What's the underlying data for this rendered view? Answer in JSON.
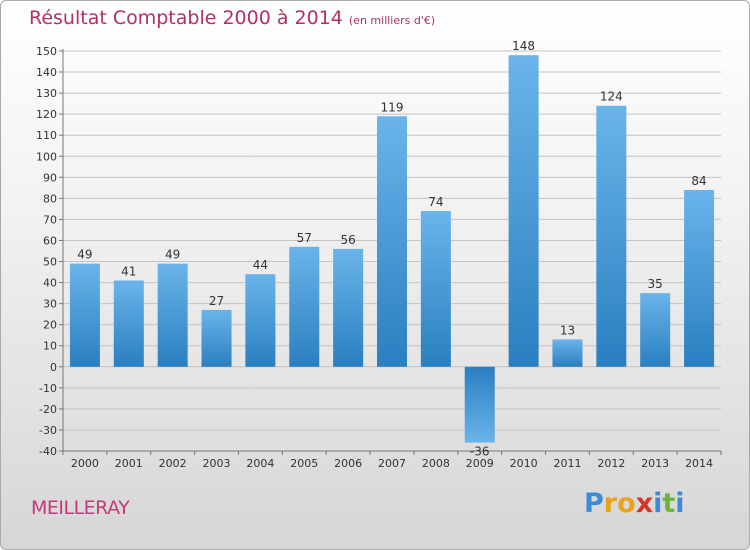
{
  "header": {
    "title": "Résultat Comptable 2000 à 2014",
    "subtitle": "(en milliers d'€)"
  },
  "footer": {
    "town": "MEILLERAY",
    "logo_letters": [
      "P",
      "r",
      "o",
      "x",
      "i",
      "t",
      "i"
    ],
    "logo_colors": [
      "#3d8bd6",
      "#e8a21b",
      "#e8a21b",
      "#d9342b",
      "#3d8bd6",
      "#6cb33f",
      "#3d8bd6"
    ]
  },
  "chart_data": {
    "type": "bar",
    "title": "Résultat Comptable 2000 à 2014",
    "subtitle": "(en milliers d'€)",
    "xlabel": "",
    "ylabel": "",
    "categories": [
      "2000",
      "2001",
      "2002",
      "2003",
      "2004",
      "2005",
      "2006",
      "2007",
      "2008",
      "2009",
      "2010",
      "2011",
      "2012",
      "2013",
      "2014"
    ],
    "values": [
      49,
      41,
      49,
      27,
      44,
      57,
      56,
      119,
      74,
      -36,
      148,
      13,
      124,
      35,
      84
    ],
    "ylim": [
      -40,
      150
    ],
    "yticks": [
      -40,
      -30,
      -20,
      -10,
      0,
      10,
      20,
      30,
      40,
      50,
      60,
      70,
      80,
      90,
      100,
      110,
      120,
      130,
      140,
      150
    ],
    "grid": true,
    "bar_color_light": "#6ab4ea",
    "bar_color_dark": "#2a7fc0",
    "label_color": "#333333"
  }
}
